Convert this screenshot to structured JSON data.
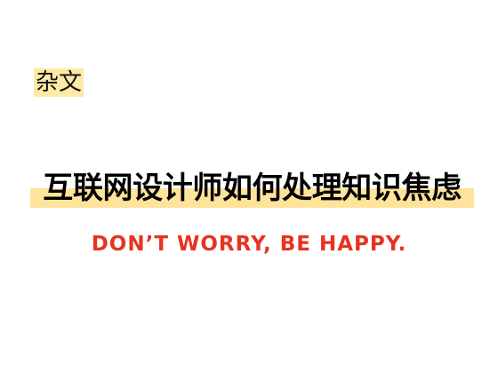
{
  "category_tag": "杂文",
  "title": "互联网设计师如何处理知识焦虑",
  "subtitle": "DON’T WORRY,  BE HAPPY.",
  "colors": {
    "background": "#ffffff",
    "tag_highlight": "#ffe9a6",
    "title_highlight": "#ffe39a",
    "subtitle_red": "#e8331f",
    "text": "#000000"
  }
}
